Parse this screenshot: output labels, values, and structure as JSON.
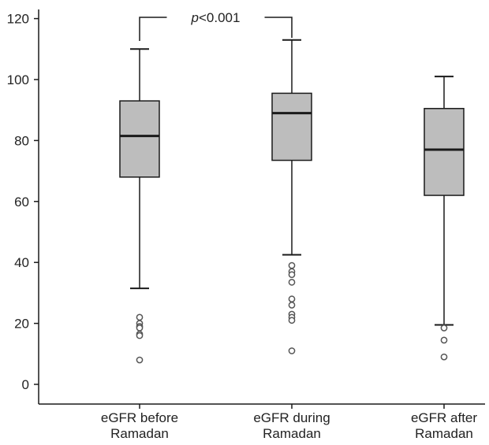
{
  "chart_data": {
    "type": "box",
    "title": "",
    "xlabel": "",
    "ylabel": "",
    "ylim": [
      -4,
      122
    ],
    "yticks": [
      0,
      20,
      40,
      60,
      80,
      100,
      120
    ],
    "grid": false,
    "categories": [
      [
        "eGFR before",
        "Ramadan"
      ],
      [
        "eGFR during",
        "Ramadan"
      ],
      [
        "eGFR after",
        "Ramadan"
      ]
    ],
    "boxes": [
      {
        "whisker_low": 31.5,
        "q1": 68,
        "median": 81.5,
        "q3": 93,
        "whisker_high": 110,
        "outliers": [
          22,
          20,
          19,
          18.5,
          16.5,
          16,
          8
        ]
      },
      {
        "whisker_low": 42.5,
        "q1": 73.5,
        "median": 89,
        "q3": 95.5,
        "whisker_high": 113,
        "outliers": [
          39,
          37,
          36,
          33.5,
          28,
          26,
          23,
          22,
          21,
          11
        ]
      },
      {
        "whisker_low": 19.5,
        "q1": 62,
        "median": 77,
        "q3": 90.5,
        "whisker_high": 101,
        "outliers": [
          18.5,
          14.5,
          9
        ]
      }
    ],
    "annotations": [
      {
        "between": [
          0,
          1
        ],
        "text_italic": "p",
        "text": "<0.001"
      }
    ],
    "colors": {
      "box_fill": "#bdbdbd",
      "stroke": "#1a1a1a",
      "outlier": "#555555"
    }
  }
}
